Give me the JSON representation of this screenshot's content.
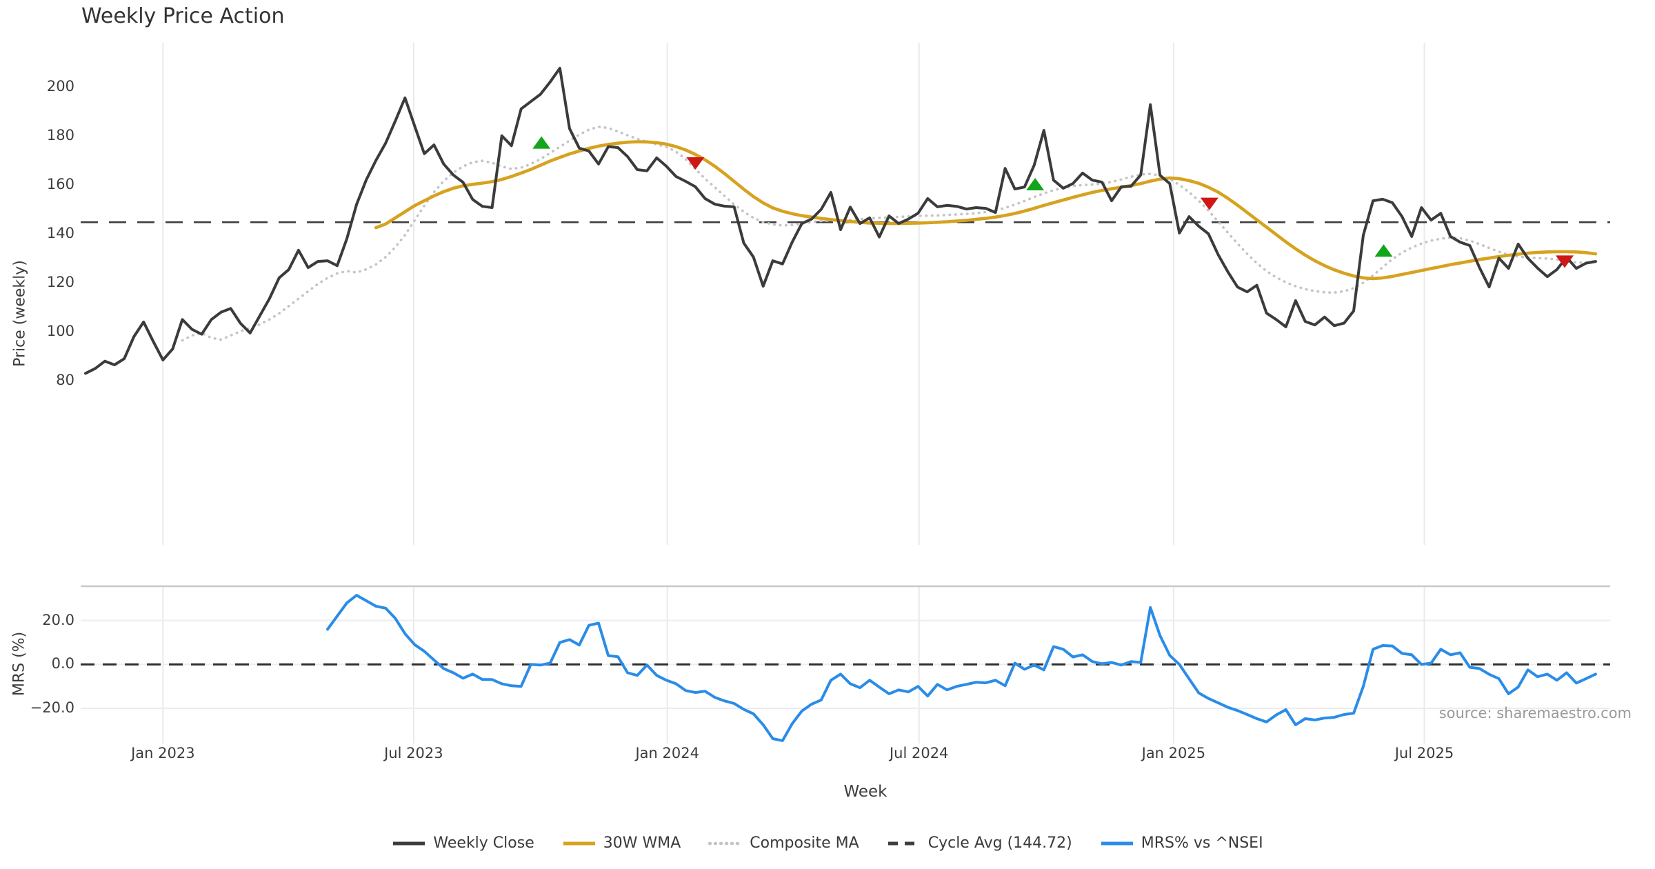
{
  "title": "Weekly Price Action",
  "source_note": "source: sharemaestro.com",
  "colors": {
    "close": "#3b3b3b",
    "wma": "#d6a21f",
    "composite": "#c4c4c4",
    "cycle_avg_dash": "#3d3d3d",
    "mrs_line": "#2a8ce8",
    "mrs_zero_dash": "#2e2e2e",
    "buy_marker": "#12a51b",
    "sell_marker": "#cf1717",
    "gridline": "#e9e9ef",
    "mrs_gridline": "#ececf1",
    "mrs_top_border": "#c8c8c8"
  },
  "legend": [
    {
      "label": "Weekly Close",
      "color": "#3b3b3b",
      "style": "solid"
    },
    {
      "label": "30W WMA",
      "color": "#d6a21f",
      "style": "solid"
    },
    {
      "label": "Composite MA",
      "color": "#c4c4c4",
      "style": "dotted"
    },
    {
      "label": "Cycle Avg (144.72)",
      "color": "#3d3d3d",
      "style": "dashed"
    },
    {
      "label": "MRS% vs ^NSEI",
      "color": "#2a8ce8",
      "style": "solid"
    }
  ],
  "chart_data": {
    "type": "line",
    "title": "Weekly Price Action",
    "x_axis": {
      "label": "Week",
      "range_weeks": [
        -0.5,
        157.5
      ],
      "ticks": [
        {
          "week": 8,
          "label": "Jan 2023"
        },
        {
          "week": 33.9,
          "label": "Jul 2023"
        },
        {
          "week": 60.1,
          "label": "Jan 2024"
        },
        {
          "week": 86.1,
          "label": "Jul 2024"
        },
        {
          "week": 112.4,
          "label": "Jan 2025"
        },
        {
          "week": 138.3,
          "label": "Jul 2025"
        }
      ]
    },
    "price_panel": {
      "y_label": "Price (weekly)",
      "y_range": [
        13,
        218
      ],
      "y_ticks": [
        {
          "value": 200,
          "label": "200"
        },
        {
          "value": 180,
          "label": "180"
        },
        {
          "value": 160,
          "label": "160"
        },
        {
          "value": 140,
          "label": "140"
        },
        {
          "value": 120,
          "label": "120"
        },
        {
          "value": 100,
          "label": "100"
        },
        {
          "value": 80,
          "label": "80"
        }
      ],
      "cycle_avg": 144.72,
      "series": [
        {
          "name": "Weekly Close",
          "start_week": 0,
          "values": [
            83,
            85,
            88,
            86.5,
            89,
            98,
            104,
            96,
            88.5,
            93,
            105,
            101,
            99,
            105,
            108,
            109.5,
            103.5,
            99.5,
            106.5,
            113.5,
            122,
            125.4,
            133.3,
            126.2,
            128.7,
            129,
            127,
            138,
            152,
            162,
            170,
            177,
            186,
            195.5,
            184,
            172.7,
            176.3,
            168.5,
            164,
            161,
            154,
            151.2,
            150.7,
            180,
            176,
            191,
            194,
            197,
            202,
            207.6,
            183,
            175,
            173.8,
            168.5,
            175.6,
            175.2,
            171.5,
            166.2,
            165.7,
            171,
            167.6,
            163.4,
            161.4,
            159.2,
            154.4,
            152.1,
            151.3,
            151,
            136.2,
            130.5,
            118.6,
            129,
            127.7,
            136.6,
            144.2,
            146,
            150,
            156.9,
            141.7,
            150.9,
            144.2,
            146.5,
            138.7,
            147.3,
            144.2,
            146,
            148.4,
            154.4,
            151,
            151.6,
            151.2,
            150.1,
            150.7,
            150.4,
            148.7,
            166.7,
            158.3,
            159.1,
            168,
            182.2,
            161.9,
            158.6,
            160.5,
            164.8,
            161.9,
            161.1,
            153.5,
            159.2,
            159.4,
            164,
            192.7,
            163.9,
            160.5,
            140.3,
            147,
            143.1,
            140,
            131.5,
            124.5,
            118.3,
            116.3,
            119,
            107.6,
            105,
            102,
            112.7,
            104.2,
            102.8,
            106,
            102.5,
            103.5,
            108.5,
            139.4,
            153.5,
            154.1,
            152.7,
            147,
            138.9,
            150.7,
            145.6,
            148.4,
            138.9,
            136.6,
            135.2,
            126.2,
            118.3,
            130.1,
            125.9,
            135.8,
            130,
            126,
            122.5,
            125.4,
            130.4,
            125.9,
            128,
            128.7
          ]
        },
        {
          "name": "30W WMA",
          "start_week": 30,
          "values": [
            142.5,
            144,
            146.5,
            149,
            151.5,
            153.5,
            155.5,
            157.2,
            158.6,
            159.6,
            160.2,
            160.7,
            161.3,
            162.2,
            163.4,
            164.8,
            166.3,
            168,
            169.7,
            171.2,
            172.6,
            173.8,
            174.9,
            175.8,
            176.5,
            177,
            177.4,
            177.6,
            177.5,
            177.2,
            176.6,
            175.6,
            174.2,
            172.4,
            170.2,
            167.6,
            164.6,
            161.4,
            158.2,
            155.2,
            152.6,
            150.6,
            149.2,
            148.2,
            147.4,
            146.8,
            146.3,
            145.8,
            145.4,
            145,
            144.7,
            144.4,
            144.3,
            144.2,
            144.2,
            144.3,
            144.4,
            144.5,
            144.7,
            144.9,
            145.2,
            145.5,
            145.9,
            146.3,
            146.8,
            147.5,
            148.3,
            149.3,
            150.4,
            151.6,
            152.7,
            153.8,
            154.9,
            155.9,
            156.9,
            157.7,
            158.4,
            159,
            159.7,
            160.5,
            161.5,
            162.3,
            162.8,
            162.5,
            161.7,
            160.6,
            159,
            157,
            154.5,
            151.7,
            148.7,
            145.7,
            142.7,
            139.7,
            136.7,
            133.9,
            131.3,
            129,
            127,
            125.3,
            123.9,
            122.8,
            122,
            121.7,
            122,
            122.6,
            123.4,
            124.2,
            125,
            125.8,
            126.6,
            127.4,
            128.1,
            128.8,
            129.5,
            130.1,
            130.7,
            131.2,
            131.7,
            132.1,
            132.4,
            132.6,
            132.7,
            132.7,
            132.6,
            132.3,
            131.8
          ]
        },
        {
          "name": "Composite MA",
          "start_week": 10,
          "values": [
            96.5,
            98.5,
            99.5,
            97.5,
            96.8,
            98.5,
            100.2,
            101.5,
            103,
            105,
            107.5,
            110.5,
            113.5,
            116.5,
            119.5,
            122,
            123.8,
            124.8,
            124.2,
            125.5,
            127.5,
            130.5,
            134.5,
            139.5,
            145.5,
            151.5,
            157,
            161.5,
            165,
            167.5,
            169.2,
            169.8,
            169,
            167.5,
            166.5,
            167,
            168.5,
            170.5,
            173,
            175.5,
            178,
            180.5,
            182.5,
            183.7,
            183.2,
            181.8,
            180.2,
            178.8,
            177.5,
            176.5,
            175.5,
            173.5,
            170.5,
            166.5,
            162.5,
            159,
            155.5,
            152,
            149,
            146.5,
            144.8,
            143.8,
            143.4,
            143.6,
            144.2,
            144.8,
            145.2,
            145.4,
            145.5,
            145.7,
            146,
            146.3,
            146.5,
            146.7,
            146.9,
            147.1,
            147.3,
            147.4,
            147.5,
            147.7,
            147.9,
            148.1,
            148.4,
            148.9,
            149.6,
            150.6,
            151.9,
            153.4,
            155,
            156.5,
            157.8,
            158.8,
            159.5,
            159.9,
            160.1,
            160.5,
            161.2,
            162.2,
            163.3,
            164.2,
            164.5,
            163.8,
            162.3,
            160,
            157,
            153.5,
            149.5,
            145,
            140.5,
            136,
            131.8,
            128,
            124.8,
            122.2,
            120.2,
            118.6,
            117.4,
            116.6,
            116.1,
            116,
            116.5,
            117.8,
            120,
            123,
            126.4,
            129.6,
            132.3,
            134.4,
            136,
            137.2,
            138,
            138.5,
            138.2,
            137.2,
            135.8,
            134.2,
            132.7,
            131.5,
            130.7,
            130.3,
            130.1,
            129.9,
            129.5,
            128.9,
            128.3,
            128.2,
            129
          ]
        }
      ],
      "signals": {
        "buy": [
          {
            "week": 47.1,
            "price": 177
          },
          {
            "week": 98.1,
            "price": 160
          },
          {
            "week": 134.1,
            "price": 132.9
          }
        ],
        "sell": [
          {
            "week": 63,
            "price": 169
          },
          {
            "week": 116.1,
            "price": 152.5
          },
          {
            "week": 152.8,
            "price": 128.9
          }
        ]
      }
    },
    "mrs_panel": {
      "y_label": "MRS (%)",
      "y_range": [
        -36,
        35.6
      ],
      "y_ticks": [
        {
          "value": 20,
          "label": "20.0"
        },
        {
          "value": 0,
          "label": "0.0"
        },
        {
          "value": -20,
          "label": "−20.0"
        }
      ],
      "zero_line": 0,
      "series": [
        {
          "name": "MRS% vs ^NSEI",
          "start_week": 25,
          "values": [
            16,
            22,
            28,
            31.5,
            29,
            26.5,
            25.6,
            21,
            14,
            9,
            6,
            2,
            -1.9,
            -3.8,
            -6.3,
            -4.4,
            -6.9,
            -6.9,
            -8.8,
            -9.7,
            -10,
            0,
            -0.3,
            0.6,
            10,
            11.3,
            8.8,
            17.8,
            18.8,
            4,
            3.5,
            -3.8,
            -5,
            -0.3,
            -5,
            -7.2,
            -8.8,
            -11.9,
            -12.8,
            -12.2,
            -15,
            -16.6,
            -17.8,
            -20.5,
            -22.5,
            -27.5,
            -33.8,
            -34.7,
            -27,
            -21.2,
            -18.1,
            -16.2,
            -7.2,
            -4.4,
            -8.8,
            -10.6,
            -7.2,
            -10.3,
            -13.4,
            -11.6,
            -12.5,
            -10,
            -14.4,
            -9.1,
            -11.6,
            -10,
            -9.1,
            -8.1,
            -8.4,
            -7.2,
            -9.7,
            0.6,
            -2.2,
            -0.3,
            -2.5,
            8.1,
            6.9,
            3.4,
            4.4,
            1.3,
            0.3,
            0.9,
            -0.3,
            1.3,
            0.9,
            25.9,
            13.1,
            4.1,
            0,
            -6.5,
            -13,
            -15.5,
            -17.5,
            -19.5,
            -21,
            -22.8,
            -24.7,
            -26.2,
            -23,
            -20.6,
            -27.5,
            -24.7,
            -25.3,
            -24.4,
            -24.1,
            -22.8,
            -22.2,
            -10,
            6.9,
            8.6,
            8.4,
            5,
            4.4,
            0,
            0.6,
            6.9,
            4.4,
            5.3,
            -1.3,
            -1.9,
            -4.5,
            -6.5,
            -13.4,
            -10.3,
            -2.5,
            -5.6,
            -4.4,
            -7.2,
            -3.8,
            -8.5,
            -6.5,
            -4.4
          ]
        }
      ]
    }
  }
}
